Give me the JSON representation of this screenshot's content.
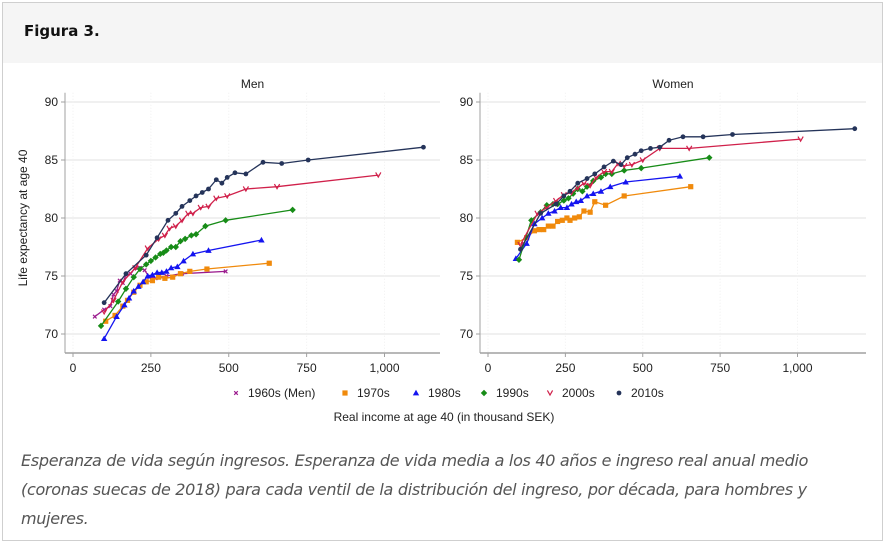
{
  "header": {
    "title": "Figura 3."
  },
  "caption": "Esperanza de vida según ingresos. Esperanza de vida media a los 40 años e ingreso real anual medio (coronas suecas de 2018) para cada ventil de la distribución del ingreso, por década, para hombres y mujeres.",
  "chart_data": {
    "type": "line",
    "xlabel": "Real income at age 40 (in thousand SEK)",
    "ylabel": "Life expectancy at age 40",
    "xlim": [
      0,
      1200
    ],
    "ylim": [
      68.5,
      90.5
    ],
    "xticks": [
      0,
      250,
      500,
      750,
      1000
    ],
    "xtick_labels": [
      "0",
      "250",
      "500",
      "750",
      "1,000"
    ],
    "yticks": [
      70,
      75,
      80,
      85,
      90
    ],
    "ytick_labels": [
      "70",
      "75",
      "80",
      "85",
      "90"
    ],
    "grid": true,
    "legend": {
      "placement": "bottom",
      "entries": [
        {
          "name": "1960s (Men)",
          "color": "#9b1b8e",
          "marker": "x"
        },
        {
          "name": "1970s",
          "color": "#f08a0c",
          "marker": "square"
        },
        {
          "name": "1980s",
          "color": "#1414f0",
          "marker": "triangle"
        },
        {
          "name": "1990s",
          "color": "#178c17",
          "marker": "diamond"
        },
        {
          "name": "2000s",
          "color": "#d0204a",
          "marker": "v"
        },
        {
          "name": "2010s",
          "color": "#25345a",
          "marker": "circle"
        }
      ]
    },
    "panels": [
      {
        "title": "Men",
        "series": [
          {
            "name": "1960s (Men)",
            "points": [
              [
                70,
                71.5
              ],
              [
                100,
                72.1
              ],
              [
                120,
                72.4
              ],
              [
                130,
                73.4
              ],
              [
                140,
                73.7
              ],
              [
                150,
                74.6
              ],
              [
                160,
                74.4
              ],
              [
                170,
                75.1
              ],
              [
                185,
                75.2
              ],
              [
                200,
                75.7
              ],
              [
                215,
                75.7
              ],
              [
                230,
                75.5
              ],
              [
                245,
                74.9
              ],
              [
                265,
                74.8
              ],
              [
                300,
                75.0
              ],
              [
                350,
                75.2
              ],
              [
                490,
                75.4
              ]
            ]
          },
          {
            "name": "1970s",
            "points": [
              [
                105,
                71.1
              ],
              [
                135,
                71.6
              ],
              [
                160,
                72.4
              ],
              [
                175,
                72.9
              ],
              [
                195,
                73.6
              ],
              [
                215,
                74.2
              ],
              [
                235,
                74.5
              ],
              [
                255,
                74.6
              ],
              [
                275,
                74.9
              ],
              [
                295,
                74.8
              ],
              [
                320,
                74.9
              ],
              [
                345,
                75.2
              ],
              [
                375,
                75.4
              ],
              [
                430,
                75.6
              ],
              [
                630,
                76.1
              ]
            ]
          },
          {
            "name": "1980s",
            "points": [
              [
                100,
                69.6
              ],
              [
                140,
                71.5
              ],
              [
                165,
                72.5
              ],
              [
                180,
                73.1
              ],
              [
                195,
                73.7
              ],
              [
                210,
                74.1
              ],
              [
                225,
                74.5
              ],
              [
                240,
                75.0
              ],
              [
                255,
                75.1
              ],
              [
                270,
                75.3
              ],
              [
                285,
                75.3
              ],
              [
                300,
                75.4
              ],
              [
                315,
                75.7
              ],
              [
                335,
                75.8
              ],
              [
                355,
                76.3
              ],
              [
                385,
                76.9
              ],
              [
                435,
                77.2
              ],
              [
                605,
                78.1
              ]
            ]
          },
          {
            "name": "1990s",
            "points": [
              [
                90,
                70.7
              ],
              [
                145,
                72.8
              ],
              [
                170,
                73.9
              ],
              [
                195,
                74.9
              ],
              [
                215,
                75.6
              ],
              [
                235,
                76.0
              ],
              [
                250,
                76.3
              ],
              [
                265,
                76.6
              ],
              [
                280,
                76.9
              ],
              [
                290,
                77.0
              ],
              [
                300,
                77.2
              ],
              [
                315,
                77.5
              ],
              [
                330,
                77.5
              ],
              [
                345,
                78.0
              ],
              [
                360,
                78.2
              ],
              [
                380,
                78.5
              ],
              [
                395,
                78.6
              ],
              [
                425,
                79.3
              ],
              [
                490,
                79.8
              ],
              [
                705,
                80.7
              ]
            ]
          },
          {
            "name": "2000s",
            "points": [
              [
                100,
                71.9
              ],
              [
                130,
                72.9
              ],
              [
                160,
                74.5
              ],
              [
                200,
                75.7
              ],
              [
                240,
                77.4
              ],
              [
                275,
                78.2
              ],
              [
                295,
                78.5
              ],
              [
                310,
                79.1
              ],
              [
                330,
                79.3
              ],
              [
                350,
                79.8
              ],
              [
                370,
                80.4
              ],
              [
                385,
                80.4
              ],
              [
                410,
                80.9
              ],
              [
                435,
                81.0
              ],
              [
                460,
                81.7
              ],
              [
                495,
                81.9
              ],
              [
                555,
                82.5
              ],
              [
                655,
                82.7
              ],
              [
                980,
                83.7
              ]
            ]
          },
          {
            "name": "2010s",
            "points": [
              [
                100,
                72.7
              ],
              [
                170,
                75.2
              ],
              [
                235,
                76.8
              ],
              [
                270,
                78.3
              ],
              [
                305,
                79.8
              ],
              [
                330,
                80.4
              ],
              [
                350,
                81.0
              ],
              [
                375,
                81.5
              ],
              [
                395,
                81.9
              ],
              [
                415,
                82.2
              ],
              [
                435,
                82.5
              ],
              [
                460,
                83.3
              ],
              [
                478,
                83.0
              ],
              [
                495,
                83.5
              ],
              [
                520,
                83.9
              ],
              [
                555,
                83.8
              ],
              [
                610,
                84.8
              ],
              [
                670,
                84.7
              ],
              [
                755,
                85.0
              ],
              [
                1125,
                86.1
              ]
            ]
          }
        ]
      },
      {
        "title": "Women",
        "series": [
          {
            "name": "1970s",
            "points": [
              [
                95,
                77.9
              ],
              [
                125,
                78.3
              ],
              [
                150,
                78.9
              ],
              [
                165,
                79.0
              ],
              [
                180,
                79.0
              ],
              [
                195,
                79.3
              ],
              [
                210,
                79.3
              ],
              [
                225,
                79.7
              ],
              [
                240,
                79.8
              ],
              [
                255,
                80.0
              ],
              [
                265,
                79.8
              ],
              [
                280,
                80.0
              ],
              [
                295,
                80.1
              ],
              [
                310,
                80.6
              ],
              [
                330,
                80.5
              ],
              [
                345,
                81.4
              ],
              [
                380,
                81.1
              ],
              [
                440,
                81.9
              ],
              [
                655,
                82.7
              ]
            ]
          },
          {
            "name": "1980s",
            "points": [
              [
                90,
                76.5
              ],
              [
                125,
                77.8
              ],
              [
                150,
                79.5
              ],
              [
                175,
                80.0
              ],
              [
                195,
                80.4
              ],
              [
                215,
                80.6
              ],
              [
                235,
                80.9
              ],
              [
                255,
                80.9
              ],
              [
                270,
                81.2
              ],
              [
                285,
                81.4
              ],
              [
                300,
                81.5
              ],
              [
                320,
                81.9
              ],
              [
                340,
                82.1
              ],
              [
                365,
                82.3
              ],
              [
                395,
                82.7
              ],
              [
                445,
                83.1
              ],
              [
                620,
                83.6
              ]
            ]
          },
          {
            "name": "1990s",
            "points": [
              [
                100,
                76.4
              ],
              [
                140,
                79.8
              ],
              [
                170,
                80.5
              ],
              [
                190,
                81.1
              ],
              [
                210,
                81.2
              ],
              [
                225,
                81.2
              ],
              [
                245,
                81.5
              ],
              [
                260,
                81.7
              ],
              [
                275,
                82.1
              ],
              [
                290,
                82.5
              ],
              [
                305,
                82.3
              ],
              [
                320,
                82.7
              ],
              [
                340,
                83.2
              ],
              [
                365,
                83.5
              ],
              [
                380,
                83.8
              ],
              [
                400,
                83.8
              ],
              [
                440,
                84.1
              ],
              [
                495,
                84.3
              ],
              [
                715,
                85.2
              ]
            ]
          },
          {
            "name": "2000s",
            "points": [
              [
                105,
                77.7
              ],
              [
                160,
                80.4
              ],
              [
                190,
                80.9
              ],
              [
                220,
                81.5
              ],
              [
                245,
                82.0
              ],
              [
                270,
                82.2
              ],
              [
                290,
                82.6
              ],
              [
                310,
                83.0
              ],
              [
                330,
                82.8
              ],
              [
                350,
                83.5
              ],
              [
                375,
                84.0
              ],
              [
                400,
                84.0
              ],
              [
                420,
                84.7
              ],
              [
                440,
                84.5
              ],
              [
                465,
                84.6
              ],
              [
                500,
                85.0
              ],
              [
                555,
                86.0
              ],
              [
                650,
                86.0
              ],
              [
                1010,
                86.8
              ]
            ]
          },
          {
            "name": "2010s",
            "points": [
              [
                105,
                77.3
              ],
              [
                170,
                80.4
              ],
              [
                220,
                81.2
              ],
              [
                245,
                81.9
              ],
              [
                265,
                82.3
              ],
              [
                290,
                83.0
              ],
              [
                320,
                83.4
              ],
              [
                345,
                83.8
              ],
              [
                375,
                84.4
              ],
              [
                405,
                84.9
              ],
              [
                430,
                84.6
              ],
              [
                450,
                85.2
              ],
              [
                475,
                85.5
              ],
              [
                495,
                85.8
              ],
              [
                525,
                86.0
              ],
              [
                555,
                86.1
              ],
              [
                585,
                86.7
              ],
              [
                630,
                87.0
              ],
              [
                695,
                87.0
              ],
              [
                790,
                87.2
              ],
              [
                1185,
                87.7
              ]
            ]
          }
        ]
      }
    ]
  }
}
